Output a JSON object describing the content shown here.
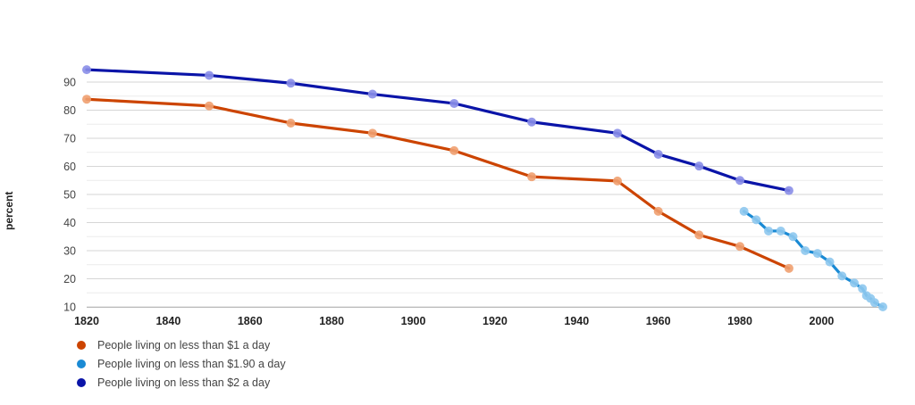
{
  "chart_data": {
    "type": "line",
    "ylabel": "percent",
    "xlim": [
      1820,
      2015
    ],
    "ylim": [
      10,
      90
    ],
    "xticks": [
      1820,
      1840,
      1860,
      1880,
      1900,
      1920,
      1940,
      1960,
      1980,
      2000
    ],
    "yticks": [
      10,
      20,
      30,
      40,
      50,
      60,
      70,
      80,
      90
    ],
    "grid": true,
    "legend_position": "bottom-left",
    "series": [
      {
        "name": "People living on less than $1 a day",
        "color": "#cc4400",
        "marker_color": "#f0a070",
        "x": [
          1820,
          1850,
          1870,
          1890,
          1910,
          1929,
          1950,
          1960,
          1970,
          1980,
          1992
        ],
        "y": [
          83.9,
          81.5,
          75.4,
          71.8,
          65.6,
          56.3,
          54.8,
          44.0,
          35.6,
          31.5,
          23.7
        ]
      },
      {
        "name": "People living on less than $1.90 a day",
        "color": "#1a8ad4",
        "marker_color": "#8ec8ee",
        "x": [
          1981,
          1984,
          1987,
          1990,
          1993,
          1996,
          1999,
          2002,
          2005,
          2008,
          2010,
          2011,
          2012,
          2013,
          2015
        ],
        "y": [
          44.0,
          41.0,
          37.0,
          37.0,
          35.0,
          30.0,
          29.0,
          26.0,
          21.0,
          18.5,
          16.5,
          14.0,
          13.0,
          11.5,
          10.0
        ]
      },
      {
        "name": "People living on less than $2 a day",
        "color": "#0a14a8",
        "marker_color": "#8a8ee8",
        "x": [
          1820,
          1850,
          1870,
          1890,
          1910,
          1929,
          1950,
          1960,
          1970,
          1980,
          1992
        ],
        "y": [
          94.4,
          92.4,
          89.6,
          85.7,
          82.4,
          75.8,
          71.8,
          64.3,
          60.1,
          55.0,
          51.4
        ]
      }
    ]
  }
}
